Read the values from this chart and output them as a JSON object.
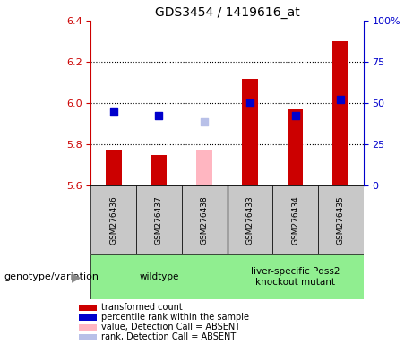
{
  "title": "GDS3454 / 1419616_at",
  "samples": [
    "GSM276436",
    "GSM276437",
    "GSM276438",
    "GSM276433",
    "GSM276434",
    "GSM276435"
  ],
  "bar_values": [
    5.775,
    5.748,
    5.772,
    6.12,
    5.97,
    6.3
  ],
  "bar_colors": [
    "#cc0000",
    "#cc0000",
    "#ffb6c1",
    "#cc0000",
    "#cc0000",
    "#cc0000"
  ],
  "dot_values": [
    5.958,
    5.938,
    5.91,
    6.002,
    5.94,
    6.02
  ],
  "dot_colors": [
    "#0000cc",
    "#0000cc",
    "#b8c0e8",
    "#0000cc",
    "#0000cc",
    "#0000cc"
  ],
  "baseline": 5.6,
  "ylim_left": [
    5.6,
    6.4
  ],
  "ylim_right": [
    0,
    100
  ],
  "yticks_left": [
    5.6,
    5.8,
    6.0,
    6.2,
    6.4
  ],
  "ytick_labels_right": [
    "0",
    "25",
    "50",
    "75",
    "100%"
  ],
  "yticks_right": [
    0,
    25,
    50,
    75,
    100
  ],
  "group_labels": [
    "wildtype",
    "liver-specific Pdss2\nknockout mutant"
  ],
  "group_ranges": [
    [
      0,
      3
    ],
    [
      3,
      6
    ]
  ],
  "group_colors": [
    "#90ee90",
    "#90ee90"
  ],
  "xlabel": "genotype/variation",
  "left_axis_color": "#cc0000",
  "right_axis_color": "#0000cc",
  "bg_label": "#c8c8c8",
  "legend_items": [
    {
      "label": "transformed count",
      "color": "#cc0000"
    },
    {
      "label": "percentile rank within the sample",
      "color": "#0000cc"
    },
    {
      "label": "value, Detection Call = ABSENT",
      "color": "#ffb6c1"
    },
    {
      "label": "rank, Detection Call = ABSENT",
      "color": "#b8c0e8"
    }
  ],
  "dotted_gridlines": [
    5.8,
    6.0,
    6.2
  ],
  "bar_width": 0.35,
  "dot_size": 40,
  "fig_width": 4.61,
  "fig_height": 3.84,
  "dpi": 100
}
